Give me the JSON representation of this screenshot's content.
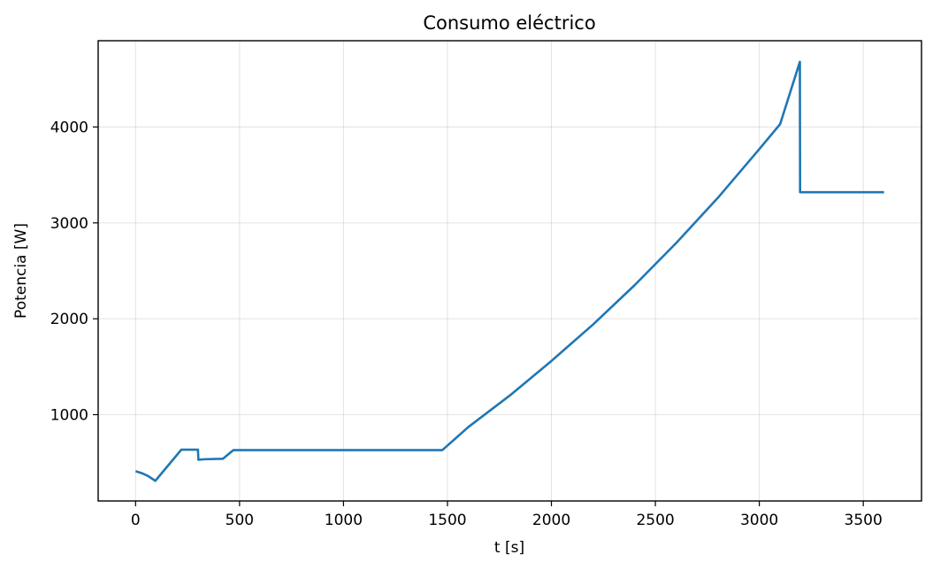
{
  "chart_data": {
    "type": "line",
    "title": "Consumo eléctrico",
    "xlabel": "t [s]",
    "ylabel": "Potencia [W]",
    "xlim": [
      -180,
      3780
    ],
    "ylim": [
      100,
      4900
    ],
    "xticks": [
      0,
      500,
      1000,
      1500,
      2000,
      2500,
      3000,
      3500
    ],
    "yticks": [
      1000,
      2000,
      3000,
      4000
    ],
    "grid": true,
    "line_color": "#1f77b4",
    "series": [
      {
        "x": [
          0,
          30,
          60,
          95,
          220,
          300,
          302,
          330,
          420,
          470,
          1475,
          1600,
          1800,
          2000,
          2200,
          2400,
          2600,
          2800,
          3000,
          3100,
          3195,
          3196,
          3600
        ],
        "values": [
          410,
          390,
          360,
          310,
          635,
          635,
          530,
          535,
          540,
          630,
          630,
          870,
          1200,
          1560,
          1940,
          2350,
          2790,
          3260,
          3770,
          4030,
          4680,
          3320,
          3320
        ]
      }
    ]
  }
}
